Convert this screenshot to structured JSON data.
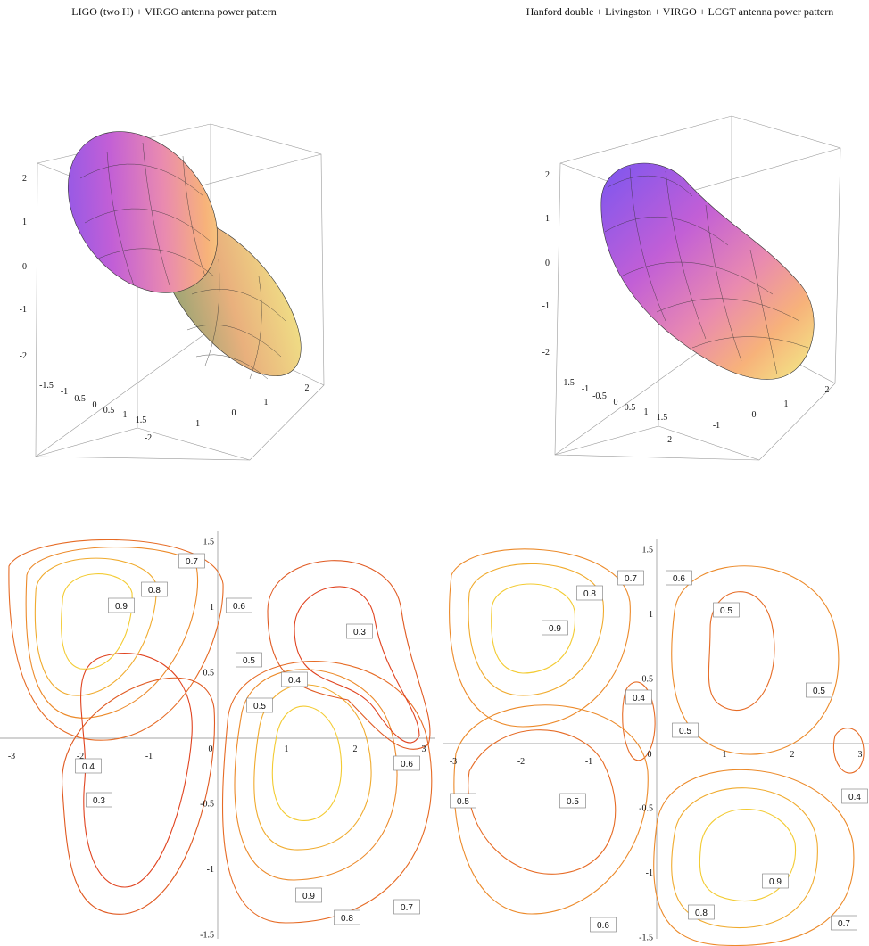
{
  "chart_data": [
    {
      "type": "surface3d",
      "title": "LIGO (two H) + VIRGO antenna power pattern",
      "z_ticks": [
        "2",
        "1",
        "0",
        "-1",
        "-2"
      ],
      "x_ticks": [
        "-1.5",
        "-1",
        "-0.5",
        "0",
        "0.5",
        "1",
        "1.5"
      ],
      "y_ticks": [
        "-2",
        "-1",
        "0",
        "1",
        "2"
      ],
      "colormap": [
        "#7b56f0",
        "#c25fd6",
        "#e98ab0",
        "#f7b27a",
        "#f2ee88"
      ]
    },
    {
      "type": "surface3d",
      "title": "Hanford double + Livingston + VIRGO + LCGT antenna power pattern",
      "z_ticks": [
        "2",
        "1",
        "0",
        "-1",
        "-2"
      ],
      "x_ticks": [
        "-1.5",
        "-1",
        "-0.5",
        "0",
        "0.5",
        "1",
        "1.5"
      ],
      "y_ticks": [
        "-2",
        "-1",
        "0",
        "1",
        "2"
      ],
      "colormap": [
        "#7b56f0",
        "#c25fd6",
        "#e98ab0",
        "#f7b27a",
        "#f2ee88"
      ]
    },
    {
      "type": "contour",
      "x_ticks": [
        "-3",
        "-2",
        "-1",
        "0",
        "1",
        "2",
        "3"
      ],
      "y_ticks": [
        "1.5",
        "1",
        "0.5",
        "-0.5",
        "-1",
        "-1.5"
      ],
      "xlim": [
        -3.14,
        3.14
      ],
      "ylim": [
        -1.57,
        1.57
      ],
      "levels": [
        "0.3",
        "0.4",
        "0.5",
        "0.6",
        "0.7",
        "0.8",
        "0.9"
      ],
      "level_labels": [
        "0.7",
        "0.8",
        "0.9",
        "0.6",
        "0.3",
        "0.5",
        "0.4",
        "0.5",
        "0.4",
        "0.3",
        "0.6",
        "0.9",
        "0.8",
        "0.7"
      ]
    },
    {
      "type": "contour",
      "x_ticks": [
        "-3",
        "-2",
        "-1",
        "0",
        "1",
        "2",
        "3"
      ],
      "y_ticks": [
        "1.5",
        "1",
        "0.5",
        "-0.5",
        "-1",
        "-1.5"
      ],
      "xlim": [
        -3.14,
        3.14
      ],
      "ylim": [
        -1.57,
        1.57
      ],
      "levels": [
        "0.4",
        "0.5",
        "0.6",
        "0.7",
        "0.8",
        "0.9"
      ],
      "level_labels": [
        "0.8",
        "0.7",
        "0.6",
        "0.5",
        "0.9",
        "0.5",
        "0.4",
        "0.5",
        "0.4",
        "0.5",
        "0.5",
        "0.6",
        "0.9",
        "0.8",
        "0.7"
      ]
    }
  ]
}
